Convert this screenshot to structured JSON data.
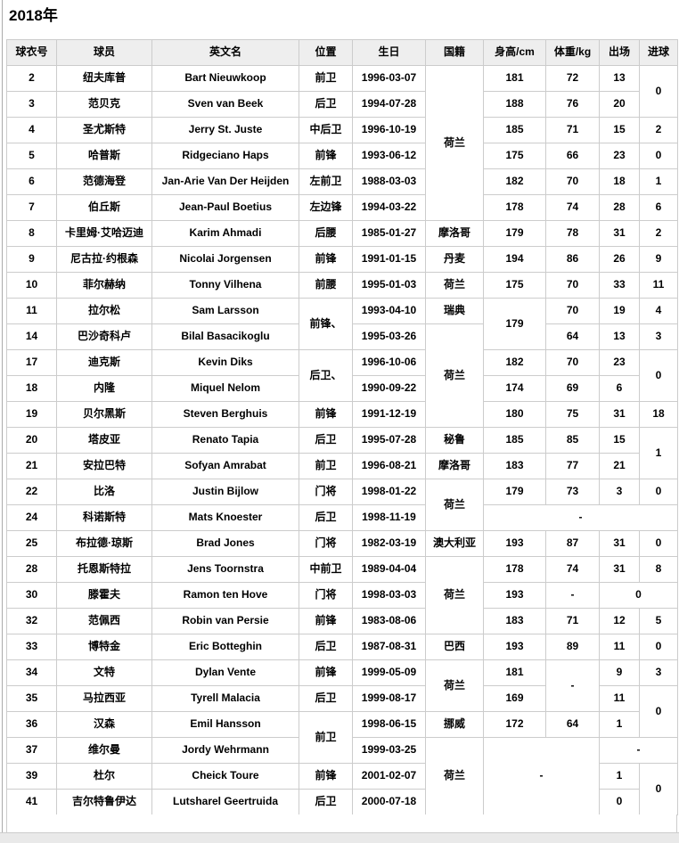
{
  "page": {
    "title": "2018年"
  },
  "colors": {
    "border": "#cccccc",
    "header_bg": "#eeeeee",
    "strip_bg": "#e9e9e9",
    "page_line": "#ababab"
  },
  "table": {
    "headers": [
      "球衣号",
      "球员",
      "英文名",
      "位置",
      "生日",
      "国籍",
      "身高/cm",
      "体重/kg",
      "出场",
      "进球"
    ],
    "rows": [
      [
        {
          "t": "2"
        },
        {
          "t": "纽夫库普"
        },
        {
          "t": "Bart Nieuwkoop"
        },
        {
          "t": "前卫"
        },
        {
          "t": "1996-03-07"
        },
        {
          "t": "荷兰",
          "rs": 6
        },
        {
          "t": "181"
        },
        {
          "t": "72"
        },
        {
          "t": "13"
        },
        {
          "t": "0",
          "rs": 2
        }
      ],
      [
        {
          "t": "3"
        },
        {
          "t": "范贝克"
        },
        {
          "t": "Sven van Beek"
        },
        {
          "t": "后卫"
        },
        {
          "t": "1994-07-28"
        },
        {
          "t": "188"
        },
        {
          "t": "76"
        },
        {
          "t": "20"
        }
      ],
      [
        {
          "t": "4"
        },
        {
          "t": "圣尤斯特"
        },
        {
          "t": "Jerry St. Juste"
        },
        {
          "t": "中后卫"
        },
        {
          "t": "1996-10-19"
        },
        {
          "t": "185"
        },
        {
          "t": "71"
        },
        {
          "t": "15"
        },
        {
          "t": "2"
        }
      ],
      [
        {
          "t": "5"
        },
        {
          "t": "哈普斯"
        },
        {
          "t": "Ridgeciano Haps"
        },
        {
          "t": "前锋"
        },
        {
          "t": "1993-06-12"
        },
        {
          "t": "175"
        },
        {
          "t": "66"
        },
        {
          "t": "23"
        },
        {
          "t": "0"
        }
      ],
      [
        {
          "t": "6"
        },
        {
          "t": "范德海登"
        },
        {
          "t": "Jan-Arie Van Der Heijden"
        },
        {
          "t": "左前卫"
        },
        {
          "t": "1988-03-03"
        },
        {
          "t": "182"
        },
        {
          "t": "70"
        },
        {
          "t": "18"
        },
        {
          "t": "1"
        }
      ],
      [
        {
          "t": "7"
        },
        {
          "t": "伯丘斯"
        },
        {
          "t": "Jean-Paul Boetius"
        },
        {
          "t": "左边锋"
        },
        {
          "t": "1994-03-22"
        },
        {
          "t": "178"
        },
        {
          "t": "74"
        },
        {
          "t": "28"
        },
        {
          "t": "6"
        }
      ],
      [
        {
          "t": "8"
        },
        {
          "t": "卡里姆·艾哈迈迪"
        },
        {
          "t": "Karim Ahmadi"
        },
        {
          "t": "后腰"
        },
        {
          "t": "1985-01-27"
        },
        {
          "t": "摩洛哥"
        },
        {
          "t": "179"
        },
        {
          "t": "78"
        },
        {
          "t": "31"
        },
        {
          "t": "2"
        }
      ],
      [
        {
          "t": "9"
        },
        {
          "t": "尼古拉·约根森"
        },
        {
          "t": "Nicolai Jorgensen"
        },
        {
          "t": "前锋"
        },
        {
          "t": "1991-01-15"
        },
        {
          "t": "丹麦"
        },
        {
          "t": "194"
        },
        {
          "t": "86"
        },
        {
          "t": "26"
        },
        {
          "t": "9"
        }
      ],
      [
        {
          "t": "10"
        },
        {
          "t": "菲尔赫纳"
        },
        {
          "t": "Tonny Vilhena"
        },
        {
          "t": "前腰"
        },
        {
          "t": "1995-01-03"
        },
        {
          "t": "荷兰"
        },
        {
          "t": "175"
        },
        {
          "t": "70"
        },
        {
          "t": "33"
        },
        {
          "t": "11"
        }
      ],
      [
        {
          "t": "11"
        },
        {
          "t": "拉尔松"
        },
        {
          "t": "Sam Larsson"
        },
        {
          "t": "前锋、",
          "rs": 2
        },
        {
          "t": "1993-04-10"
        },
        {
          "t": "瑞典"
        },
        {
          "t": "179",
          "rs": 2
        },
        {
          "t": "70"
        },
        {
          "t": "19"
        },
        {
          "t": "4"
        }
      ],
      [
        {
          "t": "14"
        },
        {
          "t": "巴沙奇科卢"
        },
        {
          "t": "Bilal Basacikoglu"
        },
        {
          "t": "1995-03-26"
        },
        {
          "t": "荷兰",
          "rs": 4
        },
        {
          "t": "64"
        },
        {
          "t": "13"
        },
        {
          "t": "3"
        }
      ],
      [
        {
          "t": "17"
        },
        {
          "t": "迪克斯"
        },
        {
          "t": "Kevin Diks"
        },
        {
          "t": "后卫、",
          "rs": 2
        },
        {
          "t": "1996-10-06"
        },
        {
          "t": "182"
        },
        {
          "t": "70"
        },
        {
          "t": "23"
        },
        {
          "t": "0",
          "rs": 2
        }
      ],
      [
        {
          "t": "18"
        },
        {
          "t": "内隆"
        },
        {
          "t": "Miquel Nelom"
        },
        {
          "t": "1990-09-22"
        },
        {
          "t": "174"
        },
        {
          "t": "69"
        },
        {
          "t": "6"
        }
      ],
      [
        {
          "t": "19"
        },
        {
          "t": "贝尔黑斯"
        },
        {
          "t": "Steven Berghuis"
        },
        {
          "t": "前锋"
        },
        {
          "t": "1991-12-19"
        },
        {
          "t": "180"
        },
        {
          "t": "75"
        },
        {
          "t": "31"
        },
        {
          "t": "18"
        }
      ],
      [
        {
          "t": "20"
        },
        {
          "t": "塔皮亚"
        },
        {
          "t": "Renato Tapia"
        },
        {
          "t": "后卫"
        },
        {
          "t": "1995-07-28"
        },
        {
          "t": "秘鲁"
        },
        {
          "t": "185"
        },
        {
          "t": "85"
        },
        {
          "t": "15"
        },
        {
          "t": "1",
          "rs": 2
        }
      ],
      [
        {
          "t": "21"
        },
        {
          "t": "安拉巴特"
        },
        {
          "t": "Sofyan Amrabat"
        },
        {
          "t": "前卫"
        },
        {
          "t": "1996-08-21"
        },
        {
          "t": "摩洛哥"
        },
        {
          "t": "183"
        },
        {
          "t": "77"
        },
        {
          "t": "21"
        }
      ],
      [
        {
          "t": "22"
        },
        {
          "t": "比洛"
        },
        {
          "t": "Justin Bijlow"
        },
        {
          "t": "门将"
        },
        {
          "t": "1998-01-22"
        },
        {
          "t": "荷兰",
          "rs": 2
        },
        {
          "t": "179"
        },
        {
          "t": "73"
        },
        {
          "t": "3"
        },
        {
          "t": "0"
        }
      ],
      [
        {
          "t": "24"
        },
        {
          "t": "科诺斯特"
        },
        {
          "t": "Mats Knoester"
        },
        {
          "t": "后卫"
        },
        {
          "t": "1998-11-19"
        },
        {
          "t": "-",
          "cs": 4
        }
      ],
      [
        {
          "t": "25"
        },
        {
          "t": "布拉德·琼斯"
        },
        {
          "t": "Brad Jones"
        },
        {
          "t": "门将"
        },
        {
          "t": "1982-03-19"
        },
        {
          "t": "澳大利亚"
        },
        {
          "t": "193"
        },
        {
          "t": "87"
        },
        {
          "t": "31"
        },
        {
          "t": "0"
        }
      ],
      [
        {
          "t": "28"
        },
        {
          "t": "托恩斯特拉"
        },
        {
          "t": "Jens Toornstra"
        },
        {
          "t": "中前卫"
        },
        {
          "t": "1989-04-04"
        },
        {
          "t": "荷兰",
          "rs": 3
        },
        {
          "t": "178"
        },
        {
          "t": "74"
        },
        {
          "t": "31"
        },
        {
          "t": "8"
        }
      ],
      [
        {
          "t": "30"
        },
        {
          "t": "滕霍夫"
        },
        {
          "t": "Ramon ten Hove"
        },
        {
          "t": "门将"
        },
        {
          "t": "1998-03-03"
        },
        {
          "t": "193"
        },
        {
          "t": "-"
        },
        {
          "t": "0",
          "cs": 2
        }
      ],
      [
        {
          "t": "32"
        },
        {
          "t": "范佩西"
        },
        {
          "t": "Robin van Persie"
        },
        {
          "t": "前锋"
        },
        {
          "t": "1983-08-06"
        },
        {
          "t": "183"
        },
        {
          "t": "71"
        },
        {
          "t": "12"
        },
        {
          "t": "5"
        }
      ],
      [
        {
          "t": "33"
        },
        {
          "t": "博特金"
        },
        {
          "t": "Eric Botteghin"
        },
        {
          "t": "后卫"
        },
        {
          "t": "1987-08-31"
        },
        {
          "t": "巴西"
        },
        {
          "t": "193"
        },
        {
          "t": "89"
        },
        {
          "t": "11"
        },
        {
          "t": "0"
        }
      ],
      [
        {
          "t": "34"
        },
        {
          "t": "文特"
        },
        {
          "t": "Dylan Vente"
        },
        {
          "t": "前锋"
        },
        {
          "t": "1999-05-09"
        },
        {
          "t": "荷兰",
          "rs": 2
        },
        {
          "t": "181"
        },
        {
          "t": "-",
          "rs": 2
        },
        {
          "t": "9"
        },
        {
          "t": "3"
        }
      ],
      [
        {
          "t": "35"
        },
        {
          "t": "马拉西亚"
        },
        {
          "t": "Tyrell Malacia"
        },
        {
          "t": "后卫"
        },
        {
          "t": "1999-08-17"
        },
        {
          "t": "169"
        },
        {
          "t": "11"
        },
        {
          "t": "0",
          "rs": 2
        }
      ],
      [
        {
          "t": "36"
        },
        {
          "t": "汉森"
        },
        {
          "t": "Emil Hansson"
        },
        {
          "t": "前卫",
          "rs": 2
        },
        {
          "t": "1998-06-15"
        },
        {
          "t": "挪威"
        },
        {
          "t": "172"
        },
        {
          "t": "64"
        },
        {
          "t": "1"
        }
      ],
      [
        {
          "t": "37"
        },
        {
          "t": "维尔曼"
        },
        {
          "t": "Jordy Wehrmann"
        },
        {
          "t": "1999-03-25"
        },
        {
          "t": "荷兰",
          "rs": 3
        },
        {
          "t": "-",
          "rs": 3,
          "cs": 2
        },
        {
          "t": "-",
          "cs": 2
        }
      ],
      [
        {
          "t": "39"
        },
        {
          "t": "杜尔"
        },
        {
          "t": "Cheick Toure"
        },
        {
          "t": "前锋"
        },
        {
          "t": "2001-02-07"
        },
        {
          "t": "1"
        },
        {
          "t": "0",
          "rs": 2
        }
      ],
      [
        {
          "t": "41"
        },
        {
          "t": "吉尔特鲁伊达"
        },
        {
          "t": "Lutsharel Geertruida"
        },
        {
          "t": "后卫"
        },
        {
          "t": "2000-07-18"
        },
        {
          "t": "0"
        }
      ]
    ]
  }
}
